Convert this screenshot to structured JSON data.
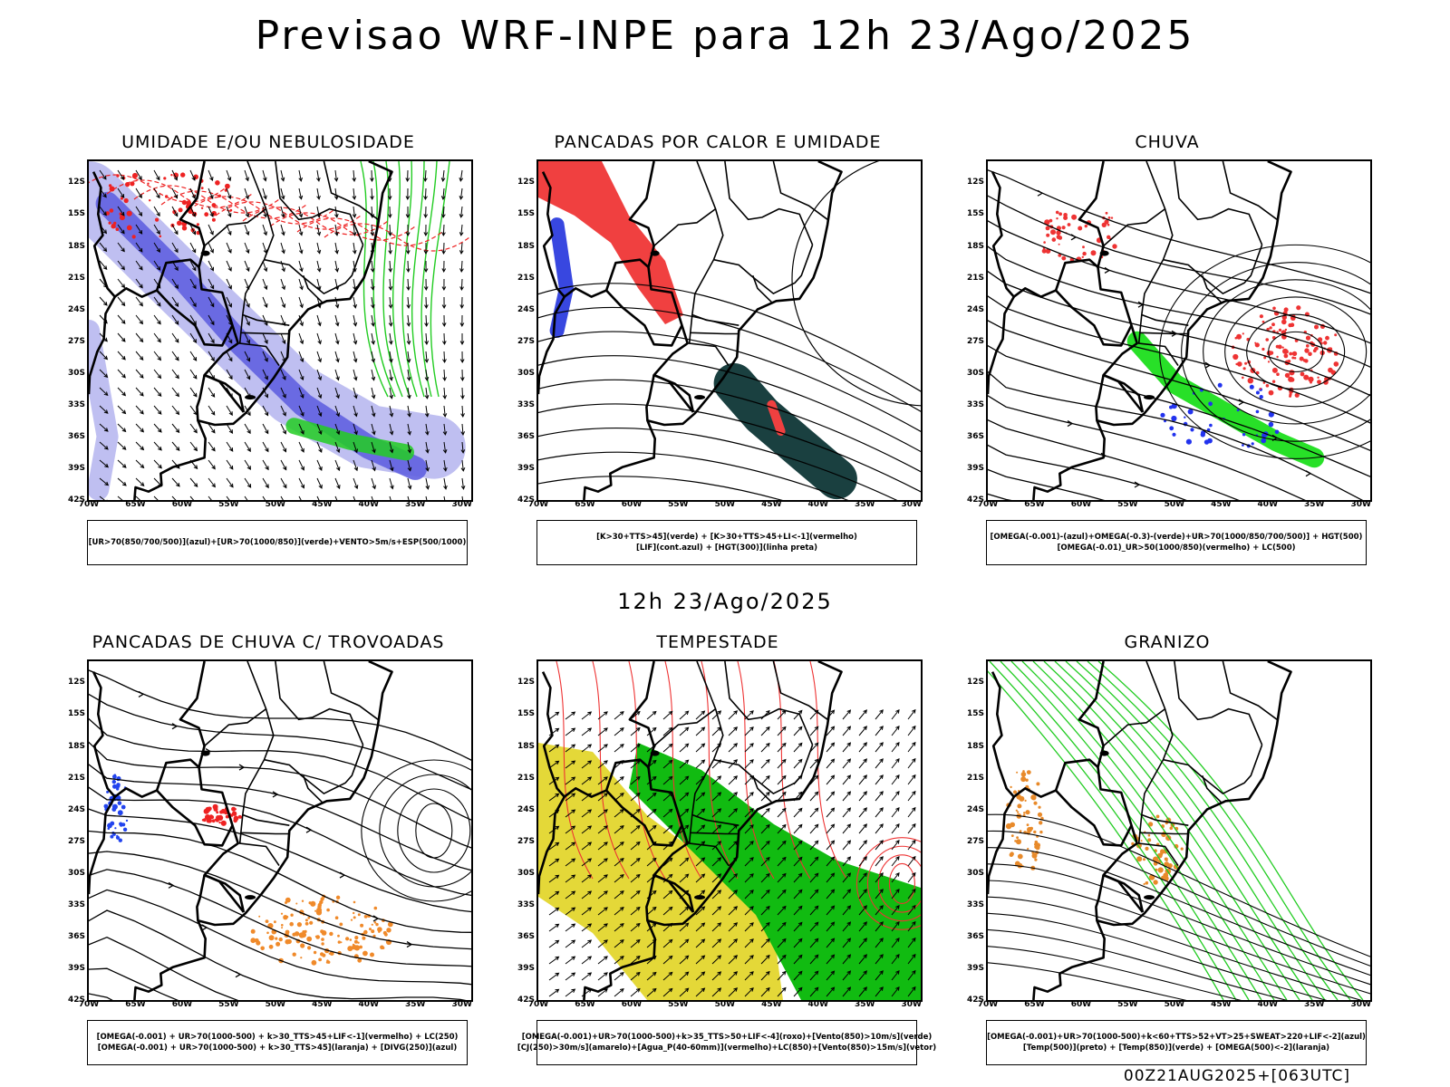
{
  "header": {
    "title": "Previsao WRF-INPE  para 12h 23/Ago/2025",
    "mid_title": "12h 23/Ago/2025",
    "footer": "00Z21AUG2025+[063UTC]"
  },
  "axes": {
    "lat_ticks": [
      "12S",
      "15S",
      "18S",
      "21S",
      "24S",
      "27S",
      "30S",
      "33S",
      "36S",
      "39S",
      "42S"
    ],
    "lon_ticks": [
      "70W",
      "65W",
      "60W",
      "55W",
      "50W",
      "45W",
      "40W",
      "35W",
      "30W"
    ]
  },
  "panels": [
    {
      "id": "umidade",
      "title": "UMIDADE E/OU NEBULOSIDADE",
      "legend": [
        "[UR>70(850/700/500)](azul)+[UR>70(1000/850)](verde)+VENTO>5m/s+ESP(500/1000)"
      ],
      "colors": {
        "shade_light": "#b8b8f0",
        "shade_dark": "#6060e0",
        "green": "#22cc22",
        "red": "#ee2222"
      }
    },
    {
      "id": "pancadas-calor",
      "title": "PANCADAS POR CALOR E UMIDADE",
      "legend": [
        "[K>30+TTS>45](verde) + [K>30+TTS>45+LI<-1](vermelho)",
        "[LIF](cont.azul) + [HGT(300)](linha preta)"
      ],
      "colors": {
        "red": "#f04040",
        "dark": "#1a4040",
        "blue": "#2233dd"
      }
    },
    {
      "id": "chuva",
      "title": "CHUVA",
      "legend": [
        "[OMEGA(-0.001)-(azul)+OMEGA(-0.3)-(verde)+UR>70(1000/850/700/500)] + HGT(500)",
        "[OMEGA(-0.01)_UR>50(1000/850)(vermelho) + LC(500)"
      ],
      "colors": {
        "red": "#ee3333",
        "green": "#11dd11",
        "blue": "#2233ee"
      }
    },
    {
      "id": "trovoadas",
      "title": "PANCADAS DE CHUVA C/ TROVOADAS",
      "legend": [
        "[OMEGA(-0.001) + UR>70(1000-500) + k>30_TTS>45+LIF<-1](vermelho) + LC(250)",
        "[OMEGA(-0.001) + UR>70(1000-500) + k>30_TTS>45](laranja) + [DIVG(250)](azul)"
      ],
      "colors": {
        "red": "#ee2222",
        "orange": "#f08a2a",
        "blue": "#2244ee"
      }
    },
    {
      "id": "tempestade",
      "title": "TEMPESTADE",
      "legend": [
        "[OMEGA(-0.001)+UR>70(1000-500)+k>35_TTS>50+LIF<-4](roxo)+[Vento(850)>10m/s](verde)",
        "[CJ(250)>30m/s](amarelo)+[Agua_P(40-60mm)](vermelho)+LC(850)+[Vento(850)>15m/s](vetor)"
      ],
      "colors": {
        "yellow": "#e4d838",
        "green": "#11bb11",
        "red": "#ee3333"
      }
    },
    {
      "id": "granizo",
      "title": "GRANIZO",
      "legend": [
        "[OMEGA(-0.001)+UR>70(1000-500)+k<60+TTS>52+VT>25+SWEAT>220+LIF<-2](azul)",
        "[Temp(500)](preto) + [Temp(850)](verde) + [OMEGA(500)<-2](laranja)"
      ],
      "colors": {
        "green": "#22cc22",
        "orange": "#e88a2a"
      }
    }
  ]
}
